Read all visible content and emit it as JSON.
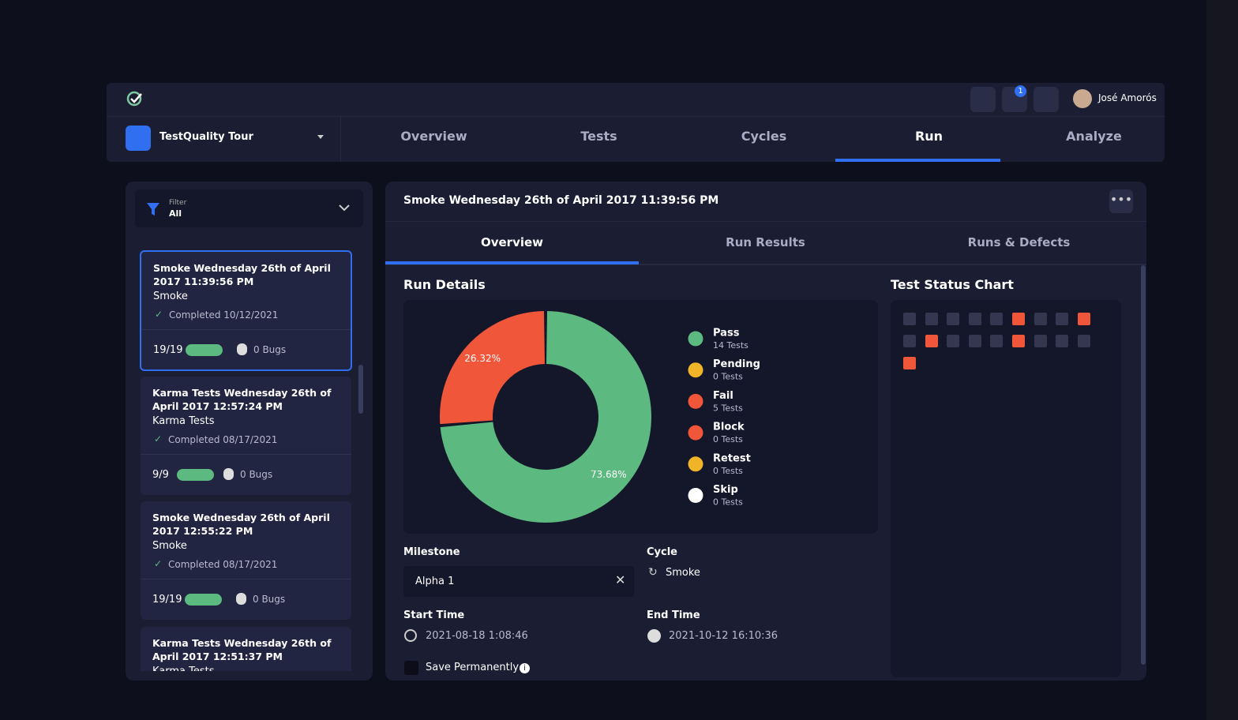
{
  "header": {
    "user": "José Amorós",
    "notifications": "1"
  },
  "nav": {
    "project": "TestQuality Tour",
    "tabs": [
      "Overview",
      "Tests",
      "Cycles",
      "Run",
      "Analyze"
    ],
    "active": 3
  },
  "filter": {
    "label": "Filter",
    "value": "All"
  },
  "runs": [
    {
      "title": "Smoke Wednesday 26th of April 2017 11:39:56 PM",
      "type": "Smoke",
      "status": "Completed 10/12/2021",
      "count": "19/19",
      "bugs": "0 Bugs"
    },
    {
      "title": "Karma Tests Wednesday 26th of April 2017 12:57:24 PM",
      "type": "Karma Tests",
      "status": "Completed 08/17/2021",
      "count": "9/9",
      "bugs": "0 Bugs"
    },
    {
      "title": "Smoke Wednesday 26th of April 2017 12:55:22 PM",
      "type": "Smoke",
      "status": "Completed 08/17/2021",
      "count": "19/19",
      "bugs": "0 Bugs"
    },
    {
      "title": "Karma Tests Wednesday 26th of April 2017 12:51:37 PM",
      "type": "Karma Tests"
    }
  ],
  "detail": {
    "title": "Smoke Wednesday 26th of April 2017 11:39:56 PM",
    "tabs": [
      "Overview",
      "Run Results",
      "Runs & Defects"
    ],
    "active": 0,
    "run_details": "Run Details",
    "milestone": {
      "label": "Milestone",
      "value": "Alpha 1"
    },
    "cycle": {
      "label": "Cycle",
      "value": "Smoke"
    },
    "start": {
      "label": "Start Time",
      "value": "2021-08-18 1:08:46"
    },
    "end": {
      "label": "End Time",
      "value": "2021-10-12 16:10:36"
    },
    "save": "Save Permanently"
  },
  "legend_counts": [
    "14 Tests",
    "0 Tests",
    "5 Tests",
    "0 Tests",
    "0 Tests",
    "0 Tests"
  ],
  "chart_data": {
    "type": "pie",
    "hole": 0.5,
    "categories": [
      "Pass",
      "Pending",
      "Fail",
      "Block",
      "Retest",
      "Skip"
    ],
    "values": [
      73.68,
      0,
      26.32,
      0,
      0,
      0
    ],
    "value_labels": [
      "73.68%",
      null,
      "26.32%",
      null,
      null,
      null
    ],
    "colors": [
      "#5cb97f",
      "#f0b429",
      "#f0563a",
      "#f0563a",
      "#f0b429",
      "#ffffff"
    ]
  },
  "test_status": {
    "title": "Test Status Chart",
    "cells": [
      0,
      0,
      0,
      0,
      0,
      2,
      0,
      0,
      2,
      0,
      2,
      0,
      0,
      0,
      2,
      0,
      0,
      0,
      2
    ]
  }
}
